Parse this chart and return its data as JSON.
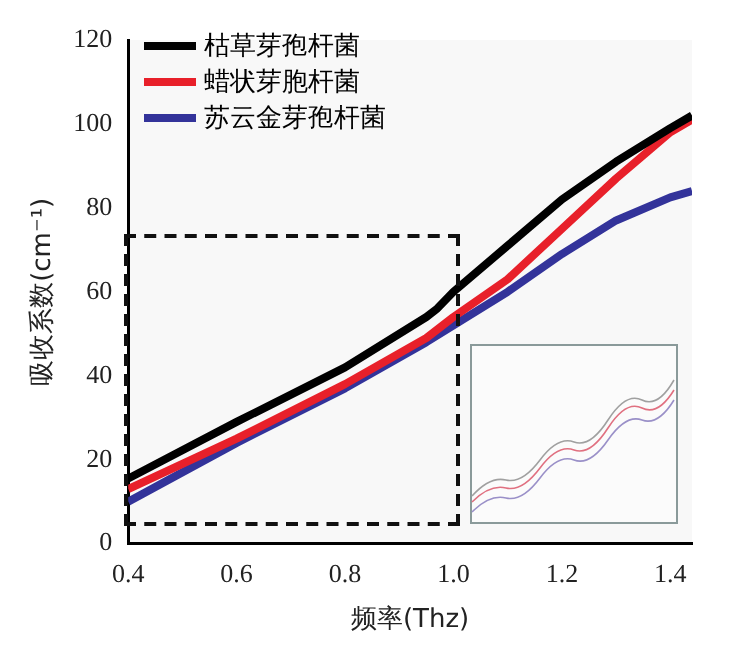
{
  "chart_data": {
    "type": "line",
    "xlabel": "频率(Thz)",
    "ylabel": "吸收系数(cm⁻¹)",
    "xlim": [
      0.4,
      1.44
    ],
    "xticks": [
      0.4,
      0.6,
      0.8,
      {
        "value": 1,
        "label": "1.0"
      },
      1.2,
      1.4
    ],
    "ylim": [
      0,
      120
    ],
    "yticks": [
      0,
      20,
      40,
      60,
      80,
      100,
      120
    ],
    "grid": false,
    "legend": "top left",
    "marker": "none",
    "line_style": "solid",
    "series": [
      {
        "name": "枯草芽孢杆菌",
        "color": "#000000",
        "x": [
          0.4,
          0.6,
          0.8,
          0.95,
          0.97,
          1.0,
          1.1,
          1.2,
          1.3,
          1.4,
          1.44
        ],
        "values": [
          15.5,
          29,
          42,
          54,
          56,
          60,
          71,
          82,
          91,
          99,
          102
        ]
      },
      {
        "name": "蜡状芽胞杆菌",
        "color": "#e8202a",
        "x": [
          0.4,
          0.6,
          0.8,
          0.95,
          1.0,
          1.1,
          1.2,
          1.3,
          1.4,
          1.44
        ],
        "values": [
          13,
          25,
          38,
          49,
          54,
          63,
          75,
          87,
          98,
          101
        ]
      },
      {
        "name": "苏云金芽孢杆菌",
        "color": "#33339a",
        "x": [
          0.4,
          0.6,
          0.8,
          0.95,
          1.0,
          1.1,
          1.2,
          1.3,
          1.4,
          1.44
        ],
        "values": [
          10,
          24,
          37,
          48,
          52,
          60,
          69,
          77,
          82.5,
          84
        ]
      }
    ]
  }
}
